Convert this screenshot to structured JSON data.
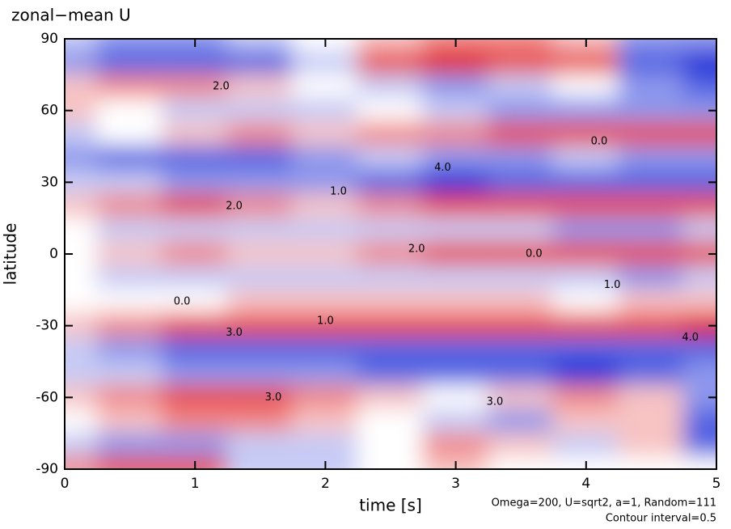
{
  "chart_data": {
    "type": "heatmap",
    "title": "zonal−mean U",
    "xlabel": "time [s]",
    "ylabel": "latitude",
    "annotations": [
      "Omega=200, U=sqrt2, a=1, Random=111",
      "Contour interval=0.5"
    ],
    "xlim": [
      0,
      5
    ],
    "xticks": [
      0,
      1,
      2,
      3,
      4,
      5
    ],
    "ylim": [
      -90,
      90
    ],
    "yticks": [
      -90,
      -60,
      -30,
      0,
      30,
      60,
      90
    ],
    "x": [
      0,
      0.5,
      1,
      1.5,
      2,
      2.5,
      3,
      3.5,
      4,
      4.5,
      5
    ],
    "y": [
      90,
      80,
      70,
      60,
      50,
      40,
      30,
      20,
      10,
      0,
      -10,
      -20,
      -30,
      -40,
      -50,
      -60,
      -70,
      -80,
      -90
    ],
    "zlim": [
      -4,
      4
    ],
    "colormap": [
      "#1a2fd8",
      "#ffffff",
      "#e01010"
    ],
    "z": [
      [
        -1,
        -2,
        -2,
        -1,
        0,
        1,
        2,
        2,
        1,
        -2,
        -2
      ],
      [
        -2,
        -3,
        -3,
        -3,
        -1,
        3,
        4,
        3,
        3,
        -3,
        -4
      ],
      [
        1,
        2,
        2,
        1,
        0,
        -1,
        -2,
        -1,
        0,
        -2,
        -3
      ],
      [
        1,
        0,
        -1,
        -1,
        -1,
        0,
        -1,
        -2,
        -2,
        -2,
        -2
      ],
      [
        -1,
        0,
        1,
        2,
        1,
        2,
        2,
        3,
        3,
        3,
        3
      ],
      [
        -2,
        -3,
        -3,
        -3,
        -2,
        -1,
        -2,
        -2,
        -1,
        -2,
        -2
      ],
      [
        -1,
        -1,
        -2,
        -2,
        -2,
        -3,
        -4,
        -3,
        -3,
        -3,
        -3
      ],
      [
        1,
        2,
        3,
        2,
        1,
        2,
        3,
        3,
        3,
        3,
        3
      ],
      [
        0,
        -1,
        -1,
        -1,
        -1,
        -1,
        -1,
        -1,
        -2,
        -2,
        -1
      ],
      [
        0,
        1,
        2,
        1,
        1,
        2,
        3,
        3,
        3,
        3,
        3
      ],
      [
        0,
        -1,
        -1,
        -1,
        -1,
        -1,
        -1,
        -1,
        -1,
        -2,
        -1
      ],
      [
        0,
        0,
        0,
        1,
        1,
        1,
        1,
        1,
        0,
        1,
        1
      ],
      [
        1,
        2,
        3,
        3,
        3,
        3,
        3,
        3,
        3,
        3,
        4
      ],
      [
        -1,
        -2,
        -3,
        -3,
        -3,
        -3,
        -3,
        -3,
        -3,
        -3,
        -3
      ],
      [
        -1,
        -1,
        -2,
        -2,
        -2,
        -3,
        -3,
        -3,
        -4,
        -3,
        -2
      ],
      [
        1,
        2,
        3,
        3,
        2,
        1,
        0,
        1,
        2,
        1,
        -2
      ],
      [
        0,
        1,
        2,
        2,
        1,
        0,
        -1,
        -2,
        1,
        1,
        -3
      ],
      [
        -1,
        -2,
        -2,
        -1,
        -1,
        0,
        2,
        1,
        -1,
        1,
        -3
      ],
      [
        2,
        3,
        3,
        -1,
        -1,
        0,
        1,
        0,
        0,
        0,
        0
      ]
    ],
    "contour_labels": [
      {
        "x": 1.2,
        "y": 70,
        "text": "2.0"
      },
      {
        "x": 0.9,
        "y": -20,
        "text": "0.0"
      },
      {
        "x": 1.3,
        "y": 20,
        "text": "2.0"
      },
      {
        "x": 1.3,
        "y": -33,
        "text": "3.0"
      },
      {
        "x": 2.1,
        "y": 26,
        "text": "1.0"
      },
      {
        "x": 2.7,
        "y": 2,
        "text": "2.0"
      },
      {
        "x": 2.9,
        "y": 36,
        "text": "4.0"
      },
      {
        "x": 3.6,
        "y": 0,
        "text": "0.0"
      },
      {
        "x": 4.2,
        "y": -13,
        "text": "1.0"
      },
      {
        "x": 2.0,
        "y": -28,
        "text": "1.0"
      },
      {
        "x": 3.3,
        "y": -62,
        "text": "3.0"
      },
      {
        "x": 4.8,
        "y": -35,
        "text": "4.0"
      },
      {
        "x": 1.6,
        "y": -60,
        "text": "3.0"
      },
      {
        "x": 4.1,
        "y": 47,
        "text": "0.0"
      }
    ]
  }
}
